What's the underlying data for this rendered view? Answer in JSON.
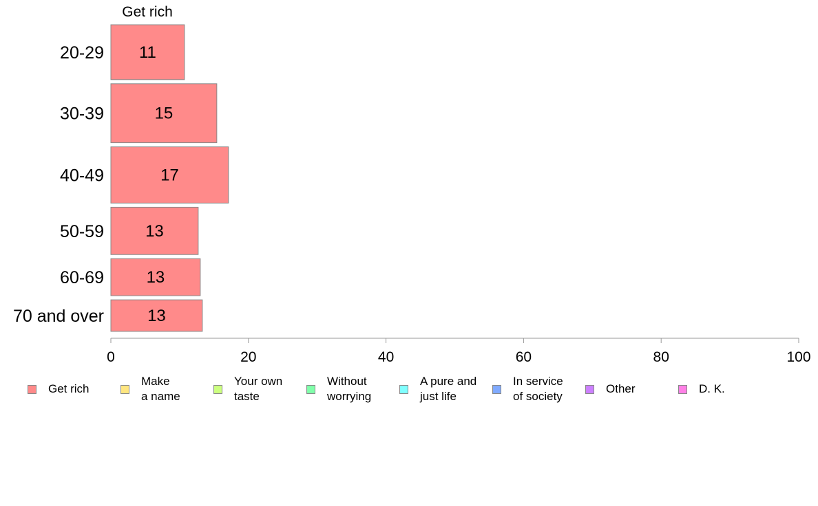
{
  "chart_data": {
    "type": "bar",
    "orientation": "horizontal",
    "panel_title": "Get rich",
    "categories": [
      "20-29",
      "30-39",
      "40-49",
      "50-59",
      "60-69",
      "70 and over"
    ],
    "series": [
      {
        "name": "Get rich",
        "values": [
          10.7,
          15.4,
          17.1,
          12.7,
          13.0,
          13.3
        ],
        "labels": [
          "11",
          "15",
          "17",
          "13",
          "13",
          "13"
        ]
      }
    ],
    "relative_heights": [
      80,
      86,
      82,
      69,
      54,
      46
    ],
    "xlim": [
      0,
      100
    ],
    "xticks": [
      "0",
      "20",
      "40",
      "60",
      "80",
      "100"
    ],
    "grid": false,
    "legend_position": "bottom",
    "legend": [
      {
        "label": "Get rich",
        "color": "#ff8a8a"
      },
      {
        "label": "Make\na name",
        "color": "#ffe680"
      },
      {
        "label": "Your own\ntaste",
        "color": "#ccff80"
      },
      {
        "label": "Without\nworrying",
        "color": "#80ffaa"
      },
      {
        "label": "A pure and\njust life",
        "color": "#80ffff"
      },
      {
        "label": "In service\nof society",
        "color": "#80aaff"
      },
      {
        "label": "Other",
        "color": "#cc80ff"
      },
      {
        "label": "D. K.",
        "color": "#ff80e6"
      }
    ],
    "bar_color": "#ff8a8a",
    "bar_border": "#888888"
  }
}
